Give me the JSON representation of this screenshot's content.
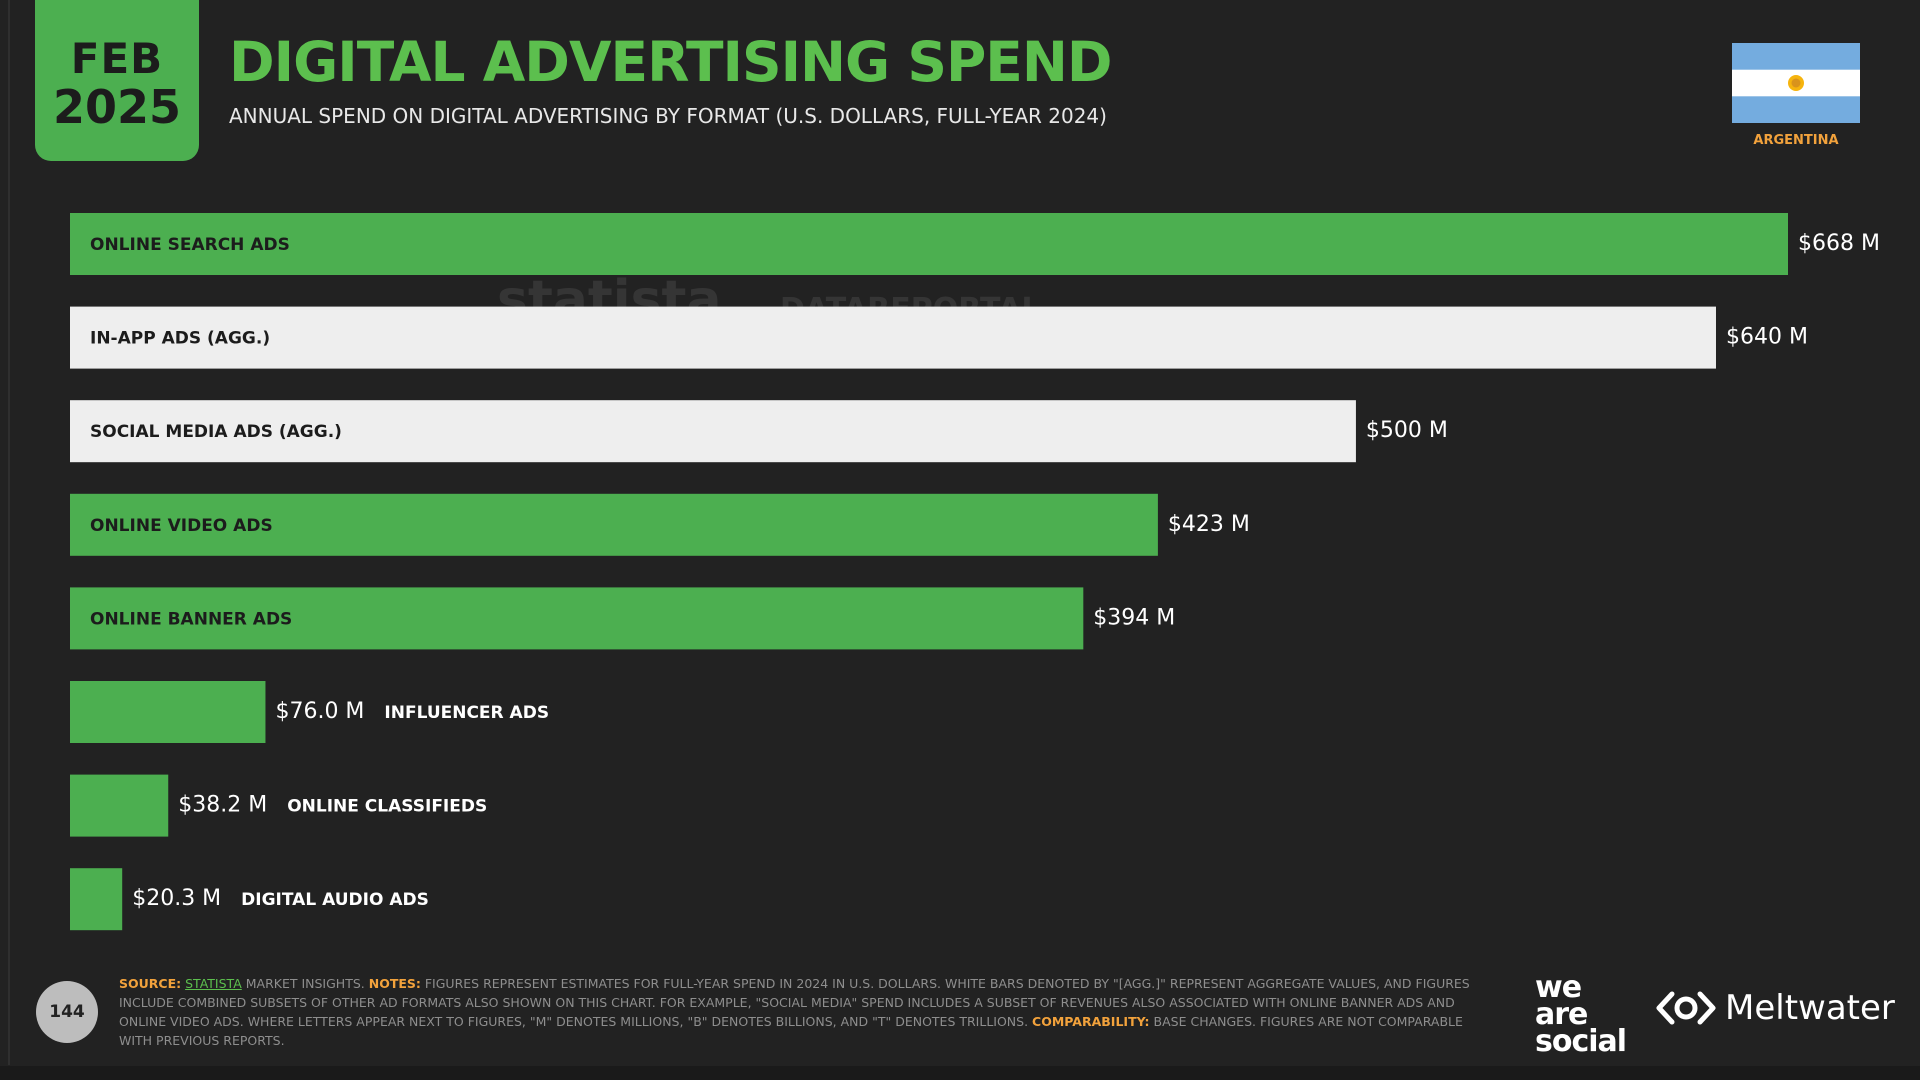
{
  "header": {
    "date_month": "FEB",
    "date_year": "2025",
    "title": "DIGITAL ADVERTISING SPEND",
    "subtitle": "ANNUAL SPEND ON DIGITAL ADVERTISING BY FORMAT (U.S. DOLLARS, FULL-YEAR 2024)",
    "country": "ARGENTINA"
  },
  "watermarks": {
    "statista": "statista",
    "datareportal": "DATAREPORTAL"
  },
  "colors": {
    "green": "#4caf50",
    "white_bar": "#eeeeee",
    "background": "#222222",
    "orange": "#f2a23c"
  },
  "chart_data": {
    "type": "bar",
    "orientation": "horizontal",
    "categories": [
      "ONLINE SEARCH ADS",
      "IN-APP ADS (AGG.)",
      "SOCIAL MEDIA ADS (AGG.)",
      "ONLINE VIDEO ADS",
      "ONLINE BANNER ADS",
      "INFLUENCER ADS",
      "ONLINE CLASSIFIEDS",
      "DIGITAL AUDIO ADS"
    ],
    "values": [
      668,
      640,
      500,
      423,
      394,
      76.0,
      38.2,
      20.3
    ],
    "value_labels": [
      "$668 M",
      "$640 M",
      "$500 M",
      "$423 M",
      "$394 M",
      "$76.0 M",
      "$38.2 M",
      "$20.3 M"
    ],
    "aggregate": [
      false,
      true,
      true,
      false,
      false,
      false,
      false,
      false
    ],
    "unit": "U.S. DOLLARS (MILLIONS)",
    "grid": false,
    "legend": "none"
  },
  "footer": {
    "page_number": "144",
    "source_label": "SOURCE:",
    "source_link": "STATISTA",
    "source_text": " MARKET INSIGHTS. ",
    "notes_label": "NOTES:",
    "notes_text": " FIGURES REPRESENT ESTIMATES FOR FULL-YEAR SPEND IN 2024 IN U.S. DOLLARS. WHITE BARS DENOTED BY \"[AGG.]\" REPRESENT AGGREGATE VALUES, AND FIGURES INCLUDE COMBINED SUBSETS OF OTHER AD FORMATS ALSO SHOWN ON THIS CHART. FOR EXAMPLE, \"SOCIAL MEDIA\" SPEND INCLUDES A SUBSET OF REVENUES ALSO ASSOCIATED WITH ONLINE BANNER ADS AND ONLINE VIDEO ADS. WHERE LETTERS APPEAR NEXT TO FIGURES, \"M\" DENOTES MILLIONS, \"B\" DENOTES BILLIONS, AND \"T\" DENOTES TRILLIONS. ",
    "comparability_label": "COMPARABILITY:",
    "comparability_text": " BASE CHANGES. FIGURES ARE NOT COMPARABLE WITH PREVIOUS REPORTS.",
    "logo_was": [
      "we",
      "are",
      "social"
    ],
    "logo_meltwater": "Meltwater"
  }
}
